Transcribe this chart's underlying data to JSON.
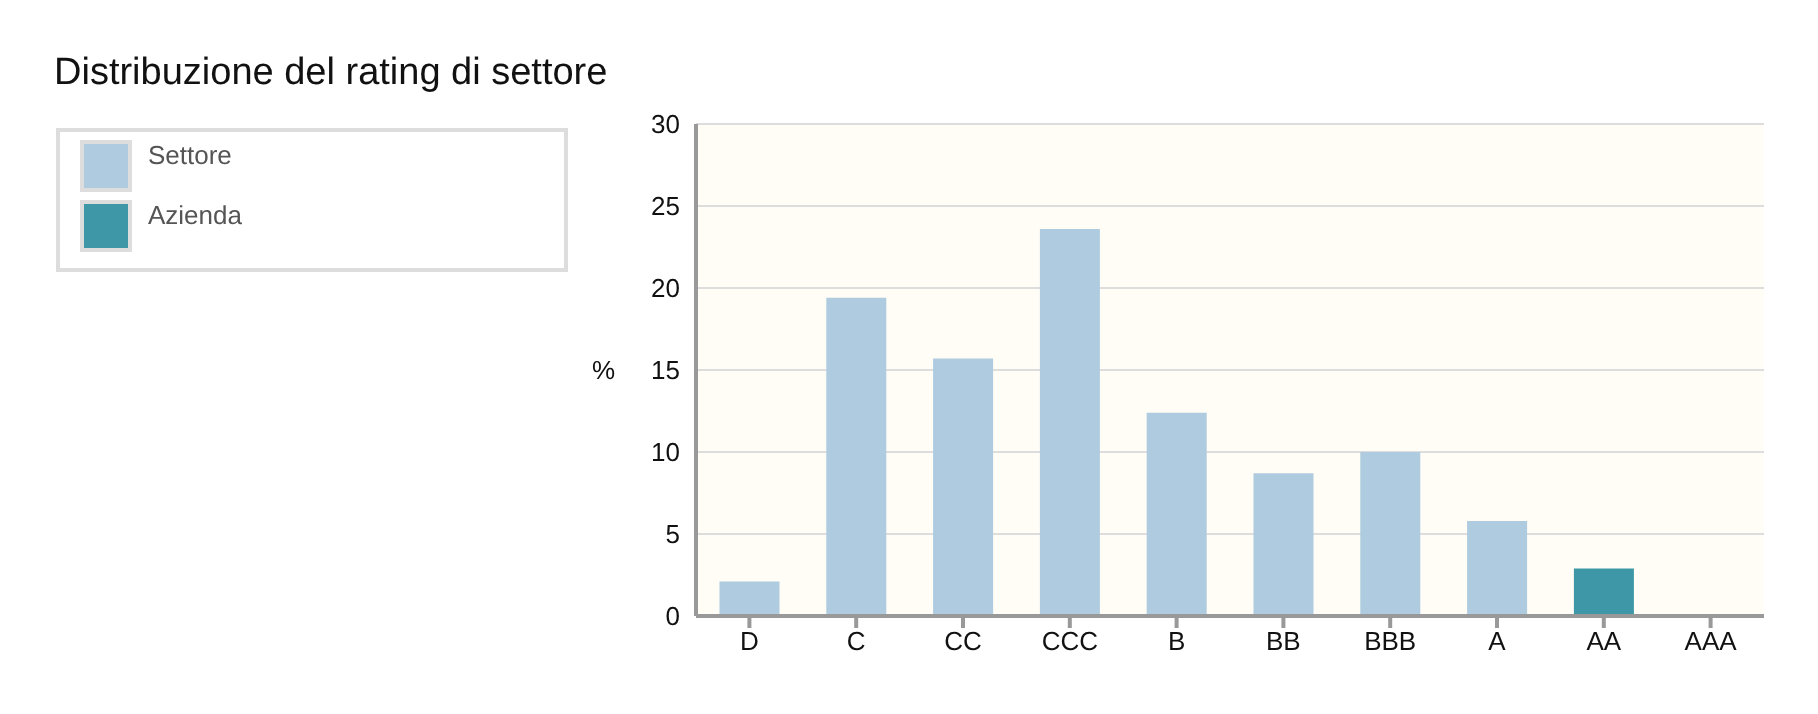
{
  "chart_data": {
    "type": "bar",
    "title": "Distribuzione del rating di settore",
    "ylabel": "%",
    "categories": [
      "D",
      "C",
      "CC",
      "CCC",
      "B",
      "BB",
      "BBB",
      "A",
      "AA",
      "AAA"
    ],
    "stacked": true,
    "series": [
      {
        "name": "Settore",
        "color": "#aecbe0",
        "values": [
          2.1,
          19.4,
          15.7,
          23.6,
          12.4,
          8.7,
          10.0,
          5.8,
          null,
          0
        ]
      },
      {
        "name": "Azienda",
        "color": "#3d97a7",
        "values": [
          null,
          null,
          null,
          null,
          null,
          null,
          null,
          null,
          2.9,
          null
        ]
      }
    ],
    "ylim": [
      0,
      30
    ],
    "yticks": [
      0,
      5,
      10,
      15,
      20,
      25,
      30
    ],
    "grid": "y",
    "legend": "left"
  }
}
